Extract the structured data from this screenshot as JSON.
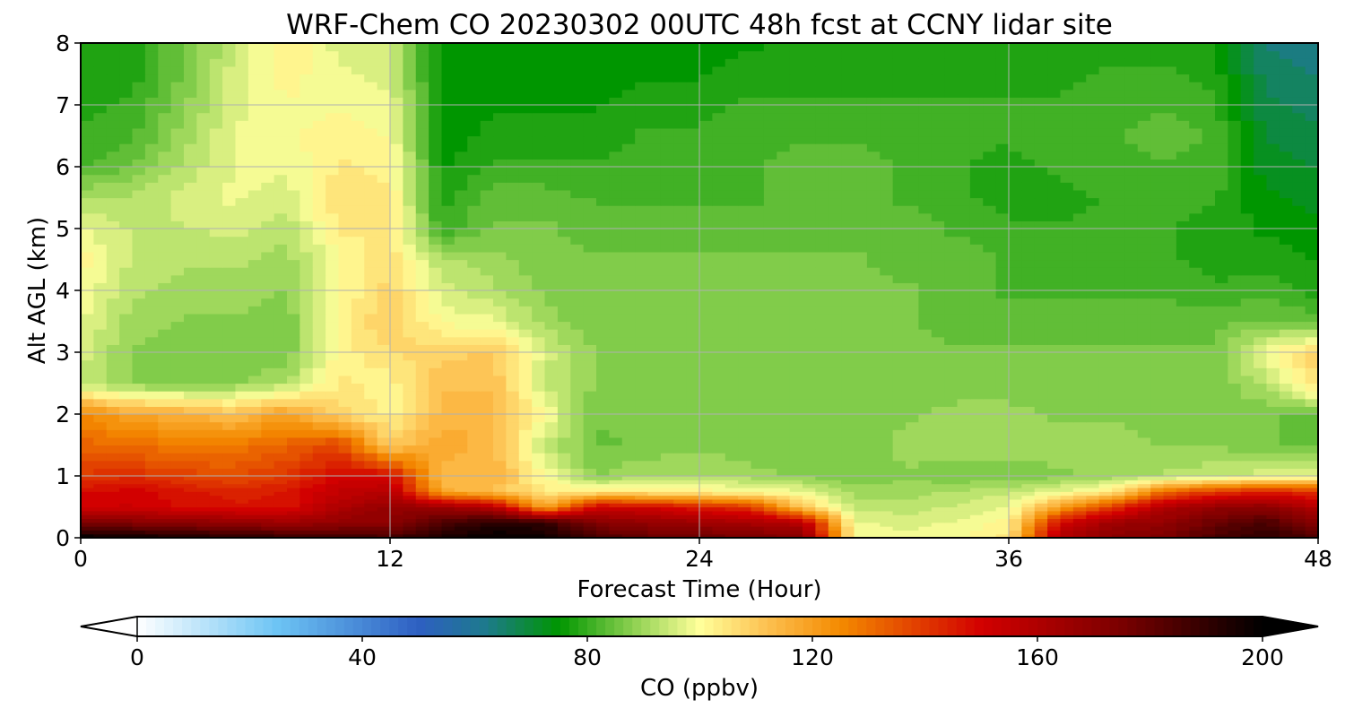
{
  "chart_data": {
    "type": "heatmap",
    "title": "WRF-Chem CO  20230302 00UTC 48h fcst at CCNY lidar site",
    "xlabel": "Forecast Time (Hour)",
    "ylabel": "Alt AGL (km)",
    "xlim": [
      0,
      48
    ],
    "ylim": [
      0,
      8
    ],
    "xticks": [
      "0",
      "12",
      "24",
      "36",
      "48"
    ],
    "yticks": [
      "0",
      "1",
      "2",
      "3",
      "4",
      "5",
      "6",
      "7",
      "8"
    ],
    "grid": true,
    "x": [
      0,
      2,
      4,
      6,
      8,
      10,
      12,
      14,
      16,
      18,
      20,
      22,
      24,
      26,
      28,
      30,
      32,
      34,
      36,
      38,
      40,
      42,
      44,
      46,
      48
    ],
    "y": [
      0,
      0.25,
      0.5,
      0.75,
      1,
      1.5,
      2,
      2.5,
      3,
      3.5,
      4,
      4.5,
      5,
      5.5,
      6,
      6.5,
      7,
      7.5,
      8
    ],
    "z": [
      [
        200,
        198,
        195,
        192,
        190,
        188,
        186,
        195,
        200,
        198,
        185,
        180,
        178,
        176,
        172,
        100,
        98,
        100,
        105,
        160,
        170,
        175,
        185,
        192,
        182
      ],
      [
        175,
        172,
        170,
        168,
        165,
        168,
        170,
        185,
        192,
        190,
        172,
        168,
        165,
        162,
        158,
        98,
        96,
        98,
        102,
        150,
        165,
        168,
        178,
        185,
        172
      ],
      [
        150,
        152,
        148,
        146,
        147,
        160,
        168,
        165,
        158,
        118,
        152,
        150,
        145,
        140,
        110,
        94,
        93,
        95,
        98,
        120,
        140,
        160,
        168,
        170,
        158
      ],
      [
        148,
        150,
        146,
        144,
        146,
        155,
        158,
        118,
        112,
        104,
        104,
        104,
        102,
        100,
        98,
        90,
        90,
        92,
        94,
        98,
        104,
        130,
        140,
        145,
        140
      ],
      [
        140,
        142,
        138,
        136,
        140,
        150,
        150,
        112,
        116,
        100,
        88,
        92,
        92,
        90,
        88,
        86,
        88,
        86,
        86,
        88,
        90,
        92,
        94,
        96,
        98
      ],
      [
        132,
        130,
        128,
        128,
        132,
        138,
        110,
        118,
        114,
        94,
        85,
        86,
        88,
        86,
        86,
        86,
        90,
        90,
        90,
        90,
        90,
        88,
        88,
        86,
        84
      ],
      [
        125,
        118,
        116,
        112,
        120,
        108,
        102,
        114,
        114,
        100,
        86,
        86,
        88,
        88,
        86,
        86,
        88,
        90,
        90,
        88,
        88,
        88,
        88,
        86,
        84
      ],
      [
        94,
        88,
        86,
        88,
        92,
        104,
        102,
        112,
        112,
        94,
        88,
        88,
        86,
        86,
        86,
        86,
        86,
        86,
        86,
        86,
        86,
        86,
        86,
        92,
        108
      ],
      [
        96,
        88,
        86,
        86,
        86,
        102,
        106,
        108,
        110,
        96,
        88,
        88,
        88,
        88,
        86,
        86,
        86,
        86,
        86,
        86,
        86,
        86,
        86,
        100,
        108
      ],
      [
        98,
        90,
        88,
        88,
        86,
        102,
        110,
        100,
        98,
        90,
        86,
        86,
        86,
        86,
        86,
        86,
        86,
        84,
        84,
        84,
        84,
        84,
        84,
        86,
        84
      ],
      [
        100,
        92,
        90,
        90,
        88,
        100,
        108,
        96,
        92,
        88,
        86,
        86,
        86,
        86,
        86,
        86,
        86,
        84,
        82,
        82,
        82,
        82,
        80,
        82,
        78
      ],
      [
        102,
        94,
        92,
        92,
        90,
        100,
        106,
        92,
        90,
        86,
        86,
        86,
        86,
        86,
        86,
        86,
        84,
        84,
        82,
        82,
        82,
        80,
        78,
        78,
        76
      ],
      [
        98,
        94,
        94,
        96,
        92,
        104,
        104,
        80,
        86,
        86,
        84,
        84,
        84,
        84,
        84,
        84,
        84,
        82,
        80,
        80,
        80,
        80,
        78,
        76,
        74
      ],
      [
        92,
        92,
        96,
        98,
        96,
        106,
        104,
        78,
        84,
        84,
        82,
        82,
        82,
        82,
        84,
        84,
        82,
        80,
        78,
        78,
        80,
        80,
        80,
        74,
        72
      ],
      [
        82,
        86,
        92,
        98,
        98,
        104,
        102,
        76,
        80,
        80,
        80,
        80,
        80,
        82,
        84,
        84,
        82,
        80,
        78,
        80,
        82,
        82,
        82,
        72,
        70
      ],
      [
        80,
        82,
        90,
        98,
        100,
        102,
        100,
        74,
        78,
        78,
        78,
        80,
        80,
        82,
        82,
        82,
        82,
        80,
        80,
        82,
        82,
        84,
        82,
        70,
        68
      ],
      [
        78,
        80,
        88,
        96,
        100,
        100,
        98,
        74,
        76,
        76,
        76,
        78,
        78,
        80,
        80,
        80,
        80,
        80,
        80,
        80,
        82,
        82,
        80,
        68,
        66
      ],
      [
        78,
        78,
        86,
        96,
        102,
        98,
        96,
        74,
        76,
        76,
        76,
        76,
        76,
        78,
        78,
        78,
        78,
        78,
        78,
        78,
        80,
        80,
        78,
        66,
        64
      ],
      [
        78,
        78,
        86,
        94,
        104,
        96,
        94,
        74,
        76,
        76,
        76,
        76,
        76,
        76,
        78,
        78,
        78,
        78,
        78,
        78,
        78,
        78,
        78,
        64,
        62
      ]
    ],
    "colorbar": {
      "label": "CO  (ppbv)",
      "min": 0,
      "max": 200,
      "ticks": [
        "0",
        "40",
        "80",
        "120",
        "160",
        "200"
      ],
      "extend": "both",
      "stops": [
        {
          "v": 0,
          "c": "#ffffff"
        },
        {
          "v": 25,
          "c": "#6cc4f4"
        },
        {
          "v": 50,
          "c": "#2e5fc2"
        },
        {
          "v": 62,
          "c": "#1d7a8c"
        },
        {
          "v": 75,
          "c": "#009600"
        },
        {
          "v": 88,
          "c": "#8cd050"
        },
        {
          "v": 100,
          "c": "#ffff9a"
        },
        {
          "v": 112,
          "c": "#fdc050"
        },
        {
          "v": 125,
          "c": "#f48a00"
        },
        {
          "v": 150,
          "c": "#d20000"
        },
        {
          "v": 175,
          "c": "#7a0000"
        },
        {
          "v": 200,
          "c": "#000000"
        }
      ]
    }
  }
}
